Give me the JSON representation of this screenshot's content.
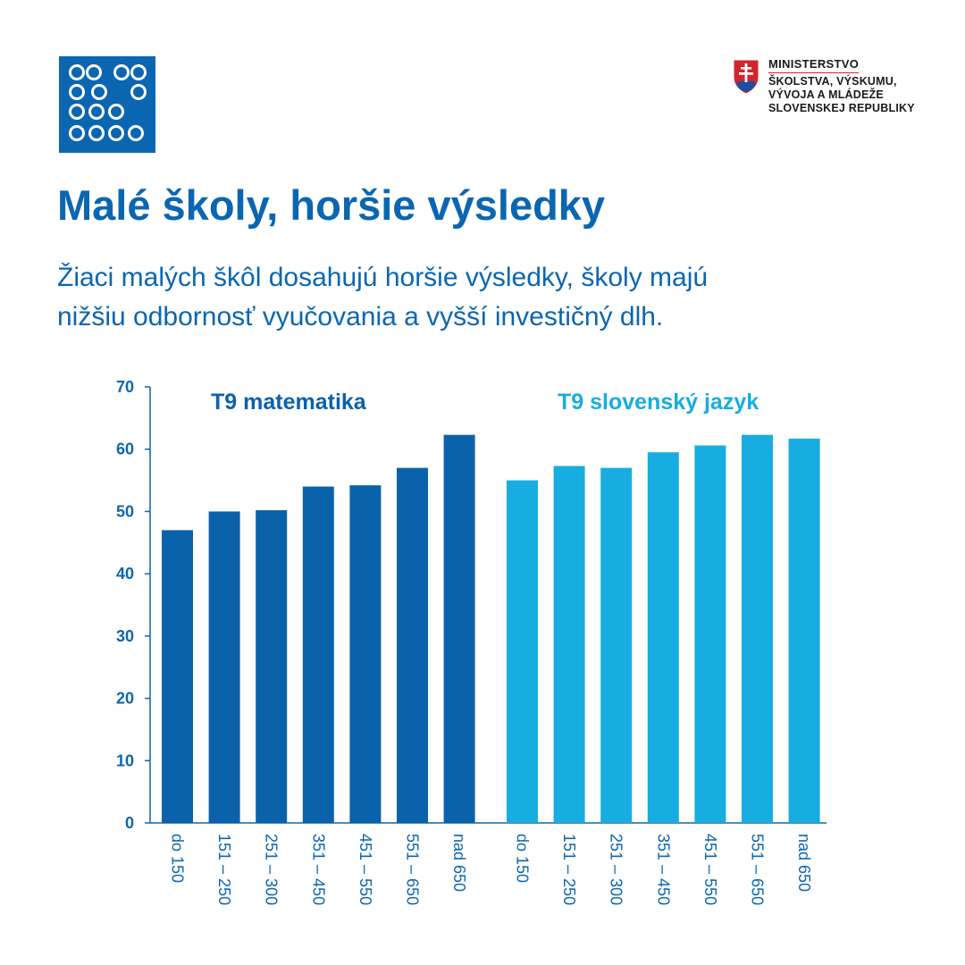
{
  "header": {
    "ministry_lines": [
      "MINISTERSTVO",
      "ŠKOLSTVA, VÝSKUMU,",
      "VÝVOJA A MLÁDEŽE",
      "SLOVENSKEJ REPUBLIKY"
    ]
  },
  "title": "Malé školy, horšie výsledky",
  "subtitle_lines": [
    "Žiaci malých škôl dosahujú horšie výsledky, školy majú",
    "nižšiu odbornosť vyučovania a vyšší investičný dlh."
  ],
  "colors": {
    "brand_blue": "#0b66b1",
    "math_bar": "#0a62ab",
    "slovak_bar": "#17ade0",
    "crest_red": "#d4232b",
    "crest_blue": "#1d4fa0"
  },
  "chart_data": {
    "type": "bar",
    "ylim": [
      0,
      70
    ],
    "yticks": [
      0,
      10,
      20,
      30,
      40,
      50,
      60,
      70
    ],
    "grid": false,
    "categories": [
      "do 150",
      "151 – 250",
      "251 – 300",
      "351 – 450",
      "451 – 550",
      "551 – 650",
      "nad 650"
    ],
    "series": [
      {
        "name": "T9 matematika",
        "color": "#0a62ab",
        "values": [
          47,
          50,
          50.2,
          54,
          54.2,
          57,
          62.3
        ]
      },
      {
        "name": "T9 slovenský jazyk",
        "color": "#17ade0",
        "values": [
          55,
          57.3,
          57,
          59.5,
          60.6,
          62.3,
          61.7
        ]
      }
    ]
  }
}
